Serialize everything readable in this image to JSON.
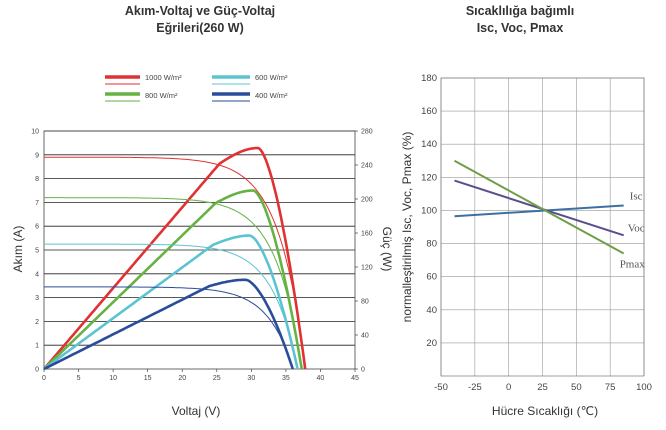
{
  "chart_data": [
    {
      "type": "line",
      "title": "Akım-Voltaj ve Güç-Voltaj Eğrileri(260 W)",
      "title_lines": [
        "Akım-Voltaj ve Güç-Voltaj",
        "Eğrileri(260 W)"
      ],
      "xlabel": "Voltaj (V)",
      "ylabel": "Akım (A)",
      "y2label": "Güç (W)",
      "xlim": [
        0,
        45
      ],
      "ylim": [
        0,
        10
      ],
      "y2lim": [
        0,
        280
      ],
      "xticks": [
        "0",
        "5",
        "10",
        "15",
        "20",
        "25",
        "30",
        "35",
        "40",
        "45"
      ],
      "yticks": [
        "0",
        "1",
        "2",
        "3",
        "4",
        "5",
        "6",
        "7",
        "8",
        "9",
        "10"
      ],
      "y2ticks": [
        "0",
        "40",
        "80",
        "120",
        "160",
        "200",
        "240",
        "280"
      ],
      "legend_position": "top",
      "series": [
        {
          "name": "1000 W/m²",
          "color": "#e03232",
          "isc": 8.9,
          "voc": 37.8,
          "vmp": 31,
          "pmax": 260
        },
        {
          "name": "800 W/m²",
          "color": "#66b244",
          "isc": 7.2,
          "voc": 37.3,
          "vmp": 30.3,
          "pmax": 210
        },
        {
          "name": "600 W/m²",
          "color": "#5bc4d0",
          "isc": 5.25,
          "voc": 36.7,
          "vmp": 29.8,
          "pmax": 157
        },
        {
          "name": "400 W/m²",
          "color": "#2a4d9b",
          "isc": 3.45,
          "voc": 36.0,
          "vmp": 29.2,
          "pmax": 105
        }
      ]
    },
    {
      "type": "line",
      "title": "Sıcaklılığa bağımlı Isc, Voc, Pmax",
      "title_lines": [
        "Sıcaklılığa bağımlı",
        "Isc, Voc, Pmax"
      ],
      "xlabel": "Hücre Sıcaklığı (℃)",
      "ylabel": "normalleştirilmiş Isc, Voc, Pmax (%)",
      "xlim": [
        -50,
        100
      ],
      "ylim": [
        0,
        180
      ],
      "xticks": [
        "-50",
        "-25",
        "0",
        "25",
        "50",
        "75",
        "100"
      ],
      "yticks": [
        "20",
        "40",
        "60",
        "80",
        "100",
        "120",
        "140",
        "160",
        "180"
      ],
      "grid": true,
      "series": [
        {
          "name": "Isc",
          "color": "#3d6fa3",
          "x": [
            -40,
            85
          ],
          "y": [
            96.5,
            103
          ]
        },
        {
          "name": "Voc",
          "color": "#5a4e8c",
          "x": [
            -40,
            85
          ],
          "y": [
            118,
            85
          ]
        },
        {
          "name": "Pmax",
          "color": "#6e9e45",
          "x": [
            -40,
            85
          ],
          "y": [
            130,
            74
          ]
        }
      ]
    }
  ]
}
